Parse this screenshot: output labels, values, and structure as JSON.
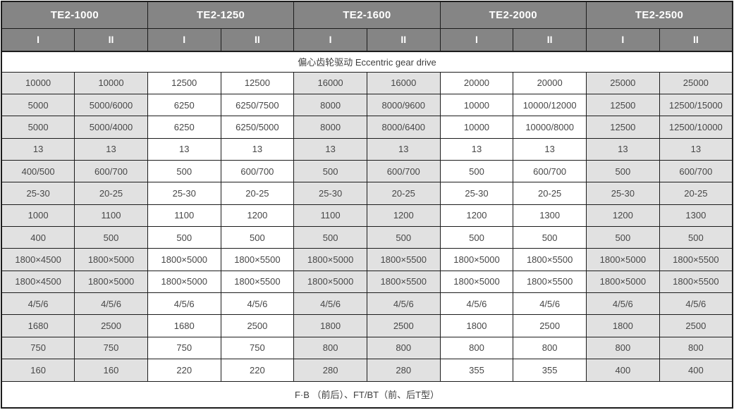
{
  "table": {
    "models": [
      "TE2-1000",
      "TE2-1250",
      "TE2-1600",
      "TE2-2000",
      "TE2-2500"
    ],
    "variants": [
      "I",
      "II"
    ],
    "drive_row_label": "偏心齿轮驱动 Eccentric gear drive",
    "footer_row_label": "F·B （前后）、FT/BT（前、后T型）",
    "rows": [
      [
        "10000",
        "10000",
        "12500",
        "12500",
        "16000",
        "16000",
        "20000",
        "20000",
        "25000",
        "25000"
      ],
      [
        "5000",
        "5000/6000",
        "6250",
        "6250/7500",
        "8000",
        "8000/9600",
        "10000",
        "10000/12000",
        "12500",
        "12500/15000"
      ],
      [
        "5000",
        "5000/4000",
        "6250",
        "6250/5000",
        "8000",
        "8000/6400",
        "10000",
        "10000/8000",
        "12500",
        "12500/10000"
      ],
      [
        "13",
        "13",
        "13",
        "13",
        "13",
        "13",
        "13",
        "13",
        "13",
        "13"
      ],
      [
        "400/500",
        "600/700",
        "500",
        "600/700",
        "500",
        "600/700",
        "500",
        "600/700",
        "500",
        "600/700"
      ],
      [
        "25-30",
        "20-25",
        "25-30",
        "20-25",
        "25-30",
        "20-25",
        "25-30",
        "20-25",
        "25-30",
        "20-25"
      ],
      [
        "1000",
        "1100",
        "1100",
        "1200",
        "1100",
        "1200",
        "1200",
        "1300",
        "1200",
        "1300"
      ],
      [
        "400",
        "500",
        "500",
        "500",
        "500",
        "500",
        "500",
        "500",
        "500",
        "500"
      ],
      [
        "1800×4500",
        "1800×5000",
        "1800×5000",
        "1800×5500",
        "1800×5000",
        "1800×5500",
        "1800×5000",
        "1800×5500",
        "1800×5000",
        "1800×5500"
      ],
      [
        "1800×4500",
        "1800×5000",
        "1800×5000",
        "1800×5500",
        "1800×5000",
        "1800×5500",
        "1800×5000",
        "1800×5500",
        "1800×5000",
        "1800×5500"
      ],
      [
        "4/5/6",
        "4/5/6",
        "4/5/6",
        "4/5/6",
        "4/5/6",
        "4/5/6",
        "4/5/6",
        "4/5/6",
        "4/5/6",
        "4/5/6"
      ],
      [
        "1680",
        "2500",
        "1680",
        "2500",
        "1800",
        "2500",
        "1800",
        "2500",
        "1800",
        "2500"
      ],
      [
        "750",
        "750",
        "750",
        "750",
        "800",
        "800",
        "800",
        "800",
        "800",
        "800"
      ],
      [
        "160",
        "160",
        "220",
        "220",
        "280",
        "280",
        "355",
        "355",
        "400",
        "400"
      ]
    ],
    "colors": {
      "header_bg": "#858585",
      "header_text": "#ffffff",
      "shaded_column_bg": "#e1e1e1",
      "unshaded_column_bg": "#ffffff",
      "border": "#1c1c1c",
      "cell_text": "#474747"
    }
  }
}
